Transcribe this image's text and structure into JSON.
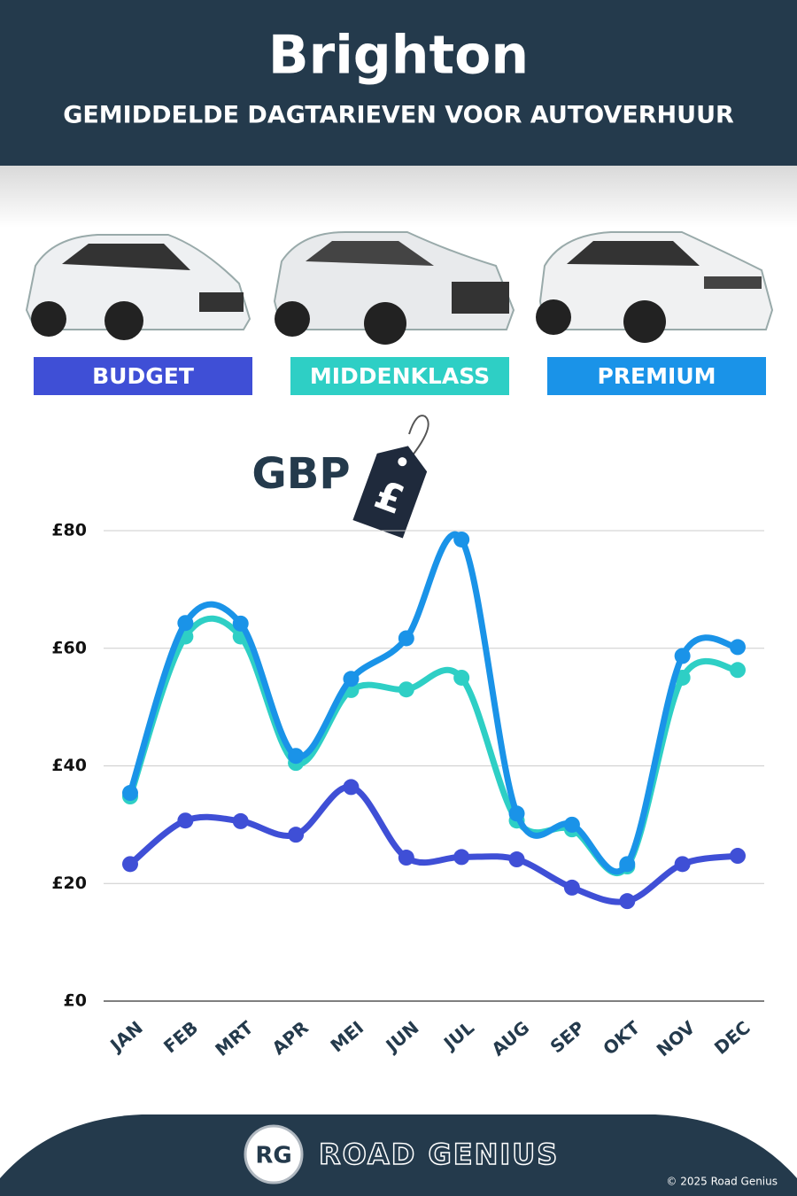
{
  "chart_data": {
    "type": "line",
    "title": "Brighton",
    "subtitle": "GEMIDDELDE DAGTARIEVEN VOOR AUTOVERHUUR",
    "categories": [
      "JAN",
      "FEB",
      "MRT",
      "APR",
      "MEI",
      "JUN",
      "JUL",
      "AUG",
      "SEP",
      "OKT",
      "NOV",
      "DEC"
    ],
    "series": [
      {
        "name": "BUDGET",
        "color": "#3f4fd6",
        "values": [
          23.3,
          30.7,
          30.6,
          28.3,
          36.4,
          24.4,
          24.5,
          24.1,
          19.3,
          17.0,
          23.3,
          24.7
        ]
      },
      {
        "name": "MIDDENKLASS",
        "color": "#2ecfc5",
        "values": [
          34.8,
          62.0,
          62.0,
          40.5,
          52.9,
          53.0,
          55.0,
          30.7,
          29.2,
          22.9,
          55.0,
          56.3
        ]
      },
      {
        "name": "PREMIUM",
        "color": "#1a93e8",
        "values": [
          35.4,
          64.3,
          64.2,
          41.7,
          54.8,
          61.7,
          78.5,
          31.9,
          30.0,
          23.3,
          58.7,
          60.2
        ]
      }
    ],
    "ylim": [
      0,
      80
    ],
    "yticks": [
      {
        "value": 0,
        "label": "£0"
      },
      {
        "value": 20,
        "label": "£20"
      },
      {
        "value": 40,
        "label": "£40"
      },
      {
        "value": 60,
        "label": "£60"
      },
      {
        "value": 80,
        "label": "£80"
      }
    ],
    "grid": true,
    "currency_label": "GBP",
    "currency_symbol": "£"
  },
  "footer": {
    "logo": "RG",
    "brand": "ROAD GENIUS",
    "copyright": "© 2025 Road Genius"
  }
}
